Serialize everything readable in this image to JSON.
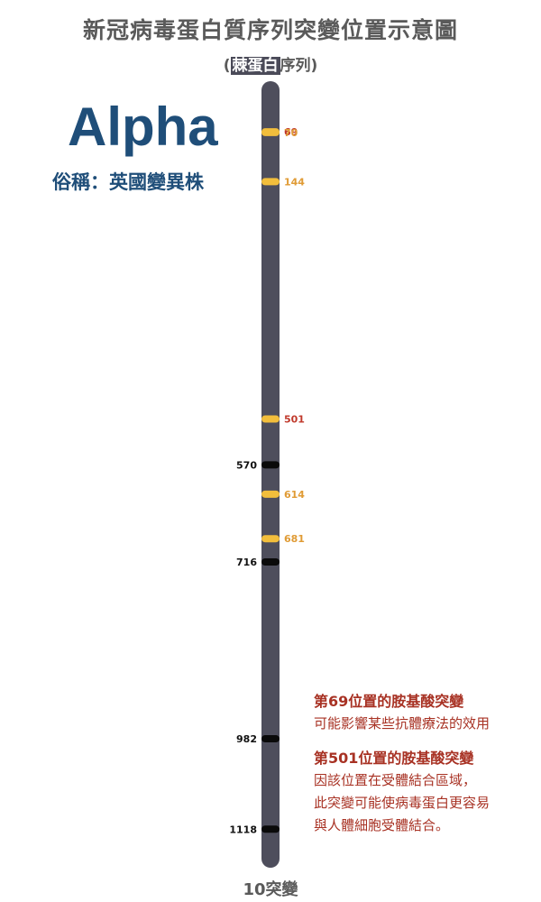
{
  "title": "新冠病毒蛋白質序列突變位置示意圖",
  "subtitle": {
    "open": "(",
    "highlight": "棘蛋白",
    "rest": "序列)"
  },
  "variant": {
    "name": "Alpha",
    "nickname": "俗稱：英國變異株"
  },
  "colors": {
    "bar": "#4e4e5c",
    "marker_yellow": "#f2be3c",
    "marker_black": "#0a0a0a",
    "label_red": "#c0392b",
    "label_orange": "#e09b35",
    "label_black": "#111111",
    "note_red": "#a83224"
  },
  "sequence_length": 1273,
  "mutations": [
    {
      "position": 69,
      "label": "69",
      "marker": "yellow",
      "label_color": "red"
    },
    {
      "position": 70,
      "label": "70",
      "marker": "yellow",
      "label_color": "orange"
    },
    {
      "position": 144,
      "label": "144",
      "marker": "yellow",
      "label_color": "orange"
    },
    {
      "position": 501,
      "label": "501",
      "marker": "yellow",
      "label_color": "red"
    },
    {
      "position": 570,
      "label": "570",
      "marker": "black",
      "label_color": "black"
    },
    {
      "position": 614,
      "label": "614",
      "marker": "yellow",
      "label_color": "orange"
    },
    {
      "position": 681,
      "label": "681",
      "marker": "yellow",
      "label_color": "orange"
    },
    {
      "position": 716,
      "label": "716",
      "marker": "black",
      "label_color": "black"
    },
    {
      "position": 982,
      "label": "982",
      "marker": "black",
      "label_color": "black"
    },
    {
      "position": 1118,
      "label": "1118",
      "marker": "black",
      "label_color": "black"
    }
  ],
  "notes": [
    {
      "heading": "第69位置的胺基酸突變",
      "lines": [
        "可能影響某些抗體療法的效用"
      ]
    },
    {
      "heading": "第501位置的胺基酸突變",
      "lines": [
        "因該位置在受體結合區域，",
        "此突變可能使病毒蛋白更容易",
        "與人體細胞受體結合。"
      ]
    }
  ],
  "total": "10突變"
}
